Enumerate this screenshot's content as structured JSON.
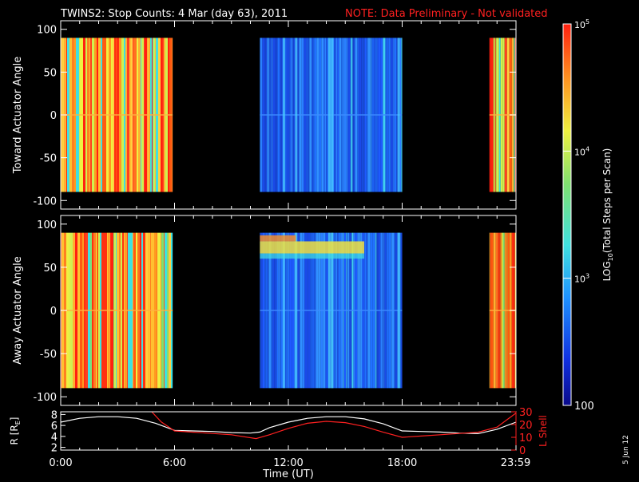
{
  "title": "TWINS2: Stop Counts:  4 Mar (day  63), 2011",
  "note": "NOTE: Data Preliminary - Not validated",
  "date_stamp": "5 Jun 12",
  "colors": {
    "background": "#000000",
    "foreground": "#ffffff",
    "note": "#ff2020",
    "lshell": "#ff2020"
  },
  "colorbar": {
    "label": "LOG10(Total Steps per Scan)",
    "label_main": "LOG",
    "label_sub": "10",
    "label_rest": "(Total Steps per Scan)",
    "ticks": [
      {
        "value": 100,
        "label": "100"
      },
      {
        "value": 1000,
        "label": "10",
        "sup": "3"
      },
      {
        "value": 10000,
        "label": "10",
        "sup": "4"
      },
      {
        "value": 100000,
        "label": "10",
        "sup": "5"
      }
    ],
    "range": [
      100,
      100000
    ],
    "scale": "log",
    "colormap": "rainbow"
  },
  "chart_data": [
    {
      "type": "heatmap",
      "ylabel": "Toward Actuator Angle",
      "ylim": [
        -110,
        110
      ],
      "yticks": [
        -100,
        -50,
        0,
        50,
        100
      ],
      "y_data_range": [
        -90,
        90
      ],
      "x_units": "hours UT",
      "xlim": [
        0,
        24
      ],
      "segments": [
        {
          "start": 0.0,
          "end": 5.9,
          "level": "high"
        },
        {
          "start": 10.5,
          "end": 18.0,
          "level": "low"
        },
        {
          "start": 22.6,
          "end": 24.0,
          "level": "high"
        }
      ]
    },
    {
      "type": "heatmap",
      "ylabel": "Away Actuator Angle",
      "ylim": [
        -110,
        110
      ],
      "yticks": [
        -100,
        -50,
        0,
        50,
        100
      ],
      "y_data_range": [
        -90,
        90
      ],
      "x_units": "hours UT",
      "xlim": [
        0,
        24
      ],
      "segments": [
        {
          "start": 0.0,
          "end": 5.9,
          "level": "high"
        },
        {
          "start": 10.5,
          "end": 18.0,
          "level": "low"
        },
        {
          "start": 22.6,
          "end": 24.0,
          "level": "high"
        }
      ]
    },
    {
      "type": "line",
      "xlabel": "Time (UT)",
      "xticks": [
        {
          "value": 0,
          "label": "0:00"
        },
        {
          "value": 6,
          "label": "6:00"
        },
        {
          "value": 12,
          "label": "12:00"
        },
        {
          "value": 18,
          "label": "18:00"
        },
        {
          "value": 23.98,
          "label": "23:59"
        }
      ],
      "xlim": [
        0,
        24
      ],
      "left_axis": {
        "label_main": "R [R",
        "label_sub": "E",
        "label_end": "]",
        "ylim": [
          1.5,
          8.5
        ],
        "ticks": [
          2,
          4,
          6,
          8
        ]
      },
      "right_axis": {
        "label": "L Shell",
        "ylim": [
          0,
          30
        ],
        "ticks": [
          0,
          10,
          20,
          30
        ]
      },
      "series": [
        {
          "name": "R [RE]",
          "color": "#ffffff",
          "x": [
            0,
            1,
            2,
            3,
            4,
            5,
            6,
            7,
            8,
            9,
            10,
            10.5,
            11,
            12,
            13,
            14,
            15,
            16,
            17,
            18,
            19,
            20,
            21,
            22,
            23,
            24
          ],
          "y": [
            6.6,
            7.3,
            7.6,
            7.6,
            7.3,
            6.4,
            5.1,
            5.0,
            4.9,
            4.7,
            4.6,
            4.8,
            5.6,
            6.6,
            7.3,
            7.6,
            7.6,
            7.2,
            6.3,
            5.0,
            4.9,
            4.8,
            4.6,
            4.5,
            5.3,
            6.6
          ]
        },
        {
          "name": "L Shell",
          "color": "#ff2020",
          "x": [
            4.8,
            5.3,
            6,
            7,
            8,
            9,
            10.3,
            11,
            12,
            13,
            14,
            15,
            16,
            17,
            18,
            19,
            20,
            21,
            22,
            23,
            24
          ],
          "y": [
            30,
            22,
            15,
            14,
            13,
            12,
            9,
            12,
            17,
            21,
            22.5,
            21.5,
            18.5,
            14,
            10,
            11,
            12,
            13,
            14,
            18,
            29
          ]
        }
      ]
    }
  ]
}
